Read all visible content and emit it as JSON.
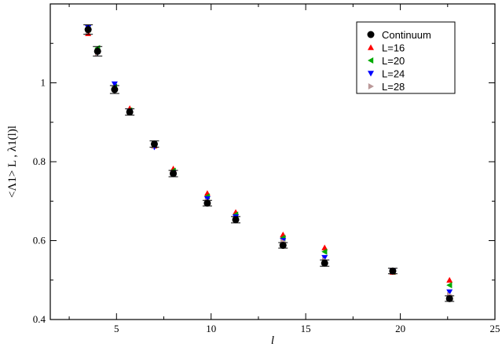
{
  "chart_data": {
    "type": "scatter",
    "xlabel": "l",
    "ylabel": "<Λ1> L , λ1(l)l",
    "xlim": [
      1.5,
      25
    ],
    "ylim": [
      0.4,
      1.2
    ],
    "xticks": [
      "5",
      "10",
      "15",
      "20",
      "25"
    ],
    "yticks": [
      "0.4",
      "0.6",
      "0.8",
      "1"
    ],
    "legend_position": "top-right",
    "series": [
      {
        "name": "Continuum",
        "color": "#000000",
        "marker": "circle",
        "x": [
          3.5,
          4.0,
          4.9,
          5.7,
          7.0,
          8.0,
          9.8,
          11.3,
          13.8,
          16.0,
          19.6,
          22.6
        ],
        "y": [
          1.135,
          1.08,
          0.983,
          0.926,
          0.845,
          0.77,
          0.695,
          0.653,
          0.588,
          0.543,
          0.523,
          0.453
        ],
        "err": [
          0.012,
          0.012,
          0.01,
          0.008,
          0.008,
          0.008,
          0.007,
          0.008,
          0.007,
          0.008,
          0.007,
          0.007
        ]
      },
      {
        "name": "L=16",
        "color": "#ff0000",
        "marker": "triangle-up",
        "x": [
          3.5,
          4.0,
          4.9,
          5.7,
          7.0,
          8.0,
          9.8,
          11.3,
          13.8,
          16.0,
          19.6,
          22.6
        ],
        "y": [
          1.125,
          1.085,
          0.99,
          0.935,
          0.84,
          0.782,
          0.72,
          0.672,
          0.615,
          0.582,
          0.52,
          0.5
        ]
      },
      {
        "name": "L=20",
        "color": "#00aa00",
        "marker": "triangle-left",
        "x": [
          3.5,
          4.0,
          4.9,
          5.7,
          7.0,
          8.0,
          9.8,
          11.3,
          13.8,
          16.0,
          19.6,
          22.6
        ],
        "y": [
          1.135,
          1.088,
          0.99,
          0.93,
          0.843,
          0.777,
          0.712,
          0.666,
          0.607,
          0.572,
          0.521,
          0.487
        ]
      },
      {
        "name": "L=24",
        "color": "#0000ff",
        "marker": "triangle-down",
        "x": [
          3.5,
          4.0,
          4.9,
          5.7,
          7.0,
          8.0,
          9.8,
          11.3,
          13.8,
          16.0,
          19.6,
          22.6
        ],
        "y": [
          1.14,
          1.076,
          0.997,
          0.926,
          0.837,
          0.772,
          0.706,
          0.66,
          0.6,
          0.557,
          0.523,
          0.47
        ]
      },
      {
        "name": "L=28",
        "color": "#bb9999",
        "marker": "triangle-right",
        "x": [
          3.5,
          4.0,
          4.9,
          5.7,
          7.0,
          8.0,
          9.8,
          11.3,
          13.8,
          16.0,
          19.6,
          22.6
        ],
        "y": [
          1.13,
          1.075,
          0.985,
          0.925,
          0.84,
          0.772,
          0.7,
          0.654,
          0.597,
          0.55,
          0.524,
          0.462
        ]
      }
    ]
  }
}
